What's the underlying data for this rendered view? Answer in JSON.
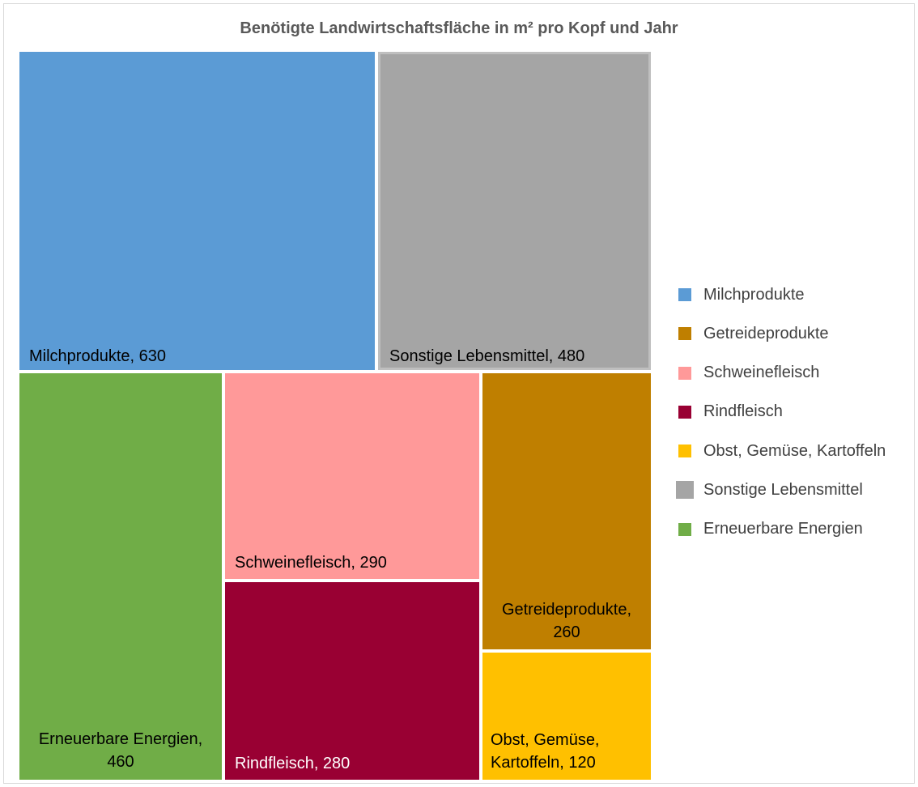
{
  "chart_data": {
    "type": "treemap",
    "title": "Benötigte Landwirtschaftsfläche in m² pro Kopf und Jahr",
    "items": [
      {
        "name": "Milchprodukte",
        "value": 630,
        "label": "Milchprodukte, 630",
        "color": "#5b9bd5",
        "text_color": "#000000"
      },
      {
        "name": "Sonstige Lebensmittel",
        "value": 480,
        "label": "Sonstige Lebensmittel, 480",
        "color": "#a5a5a5",
        "text_color": "#000000"
      },
      {
        "name": "Erneuerbare Energien",
        "value": 460,
        "label": "Erneuerbare Energien,\n460",
        "color": "#70ad47",
        "text_color": "#000000"
      },
      {
        "name": "Schweinefleisch",
        "value": 290,
        "label": "Schweinefleisch, 290",
        "color": "#ff9999",
        "text_color": "#000000"
      },
      {
        "name": "Rindfleisch",
        "value": 280,
        "label": "Rindfleisch, 280",
        "color": "#990033",
        "text_color": "#ffffff"
      },
      {
        "name": "Getreideprodukte",
        "value": 260,
        "label": "Getreideprodukte,\n260",
        "color": "#bf7f00",
        "text_color": "#000000"
      },
      {
        "name": "Obst, Gemüse, Kartoffeln",
        "value": 120,
        "label": "Obst, Gemüse,\nKartoffeln, 120",
        "color": "#ffc000",
        "text_color": "#000000"
      }
    ],
    "legend": {
      "position": "right",
      "entries": [
        {
          "label": "Milchprodukte",
          "color": "#5b9bd5"
        },
        {
          "label": "Getreideprodukte",
          "color": "#bf7f00"
        },
        {
          "label": "Schweinefleisch",
          "color": "#ff9999"
        },
        {
          "label": "Rindfleisch",
          "color": "#990033"
        },
        {
          "label": "Obst, Gemüse, Kartoffeln",
          "color": "#ffc000"
        },
        {
          "label": "Sonstige Lebensmittel",
          "color": "#a5a5a5",
          "highlighted": true
        },
        {
          "label": "Erneuerbare Energien",
          "color": "#70ad47"
        }
      ]
    }
  }
}
